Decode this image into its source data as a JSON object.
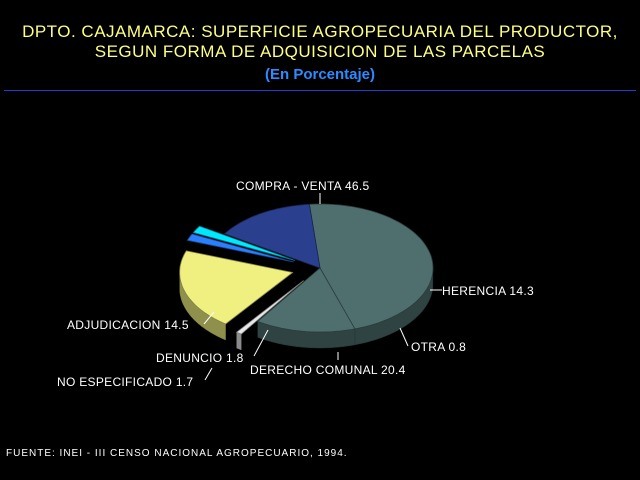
{
  "chart_data": {
    "type": "pie",
    "title_line1": "DPTO. CAJAMARCA: SUPERFICIE AGROPECUARIA DEL PRODUCTOR,",
    "title_line2": "SEGUN FORMA DE ADQUISICION DE LAS PARCELAS",
    "subtitle": "(En Porcentaje)",
    "slices": [
      {
        "label": "COMPRA - VENTA",
        "value": 46.5,
        "display": "COMPRA - VENTA  46.5",
        "color": "#4f6f6f",
        "exploded": false
      },
      {
        "label": "HERENCIA",
        "value": 14.3,
        "display": "HERENCIA  14.3",
        "color": "#4f6f6f",
        "exploded": false
      },
      {
        "label": "OTRA",
        "value": 0.8,
        "display": "OTRA  0.8",
        "color": "#e8e8e8",
        "exploded": true
      },
      {
        "label": "DERECHO COMUNAL",
        "value": 20.4,
        "display": "DERECHO COMUNAL  20.4",
        "color": "#f0f080",
        "exploded": true
      },
      {
        "label": "NO ESPECIFICADO",
        "value": 1.7,
        "display": "NO ESPECIFICADO  1.7",
        "color": "#2a7fff",
        "exploded": true
      },
      {
        "label": "DENUNCIO",
        "value": 1.8,
        "display": "DENUNCIO  1.8",
        "color": "#00e8ff",
        "exploded": true
      },
      {
        "label": "ADJUDICACION",
        "value": 14.5,
        "display": "ADJUDICACION  14.5",
        "color": "#2b3f8f",
        "exploded": false
      }
    ],
    "source": "FUENTE: INEI - III CENSO NACIONAL AGROPECUARIO, 1994."
  },
  "colors": {
    "background": "#000000",
    "title": "#ffff80",
    "subtitle": "#2e8bff",
    "rule": "#1f3fd0",
    "label_text": "#ffffff"
  }
}
